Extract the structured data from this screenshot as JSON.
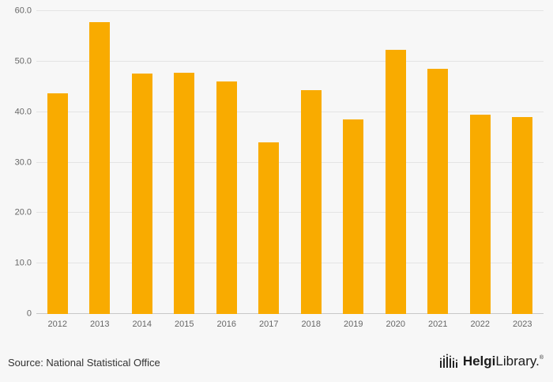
{
  "chart_data": {
    "type": "bar",
    "categories": [
      "2012",
      "2013",
      "2014",
      "2015",
      "2016",
      "2017",
      "2018",
      "2019",
      "2020",
      "2021",
      "2022",
      "2023"
    ],
    "values": [
      43.7,
      57.8,
      47.7,
      47.8,
      46.0,
      34.0,
      44.3,
      38.5,
      52.4,
      48.5,
      39.5,
      39.0
    ],
    "title": "",
    "xlabel": "",
    "ylabel": "",
    "ylim": [
      0,
      60
    ],
    "ytick_step": 10,
    "ytick_labels": [
      "0",
      "10.0",
      "20.0",
      "30.0",
      "40.0",
      "50.0",
      "60.0"
    ],
    "bar_color": "#F9AB00",
    "grid": true,
    "legend_position": "none",
    "background_color": "#f7f7f7"
  },
  "footer": {
    "source": "Source: National Statistical Office",
    "logo_bold": "Helgi",
    "logo_regular": "Library",
    "logo_suffix": "."
  }
}
